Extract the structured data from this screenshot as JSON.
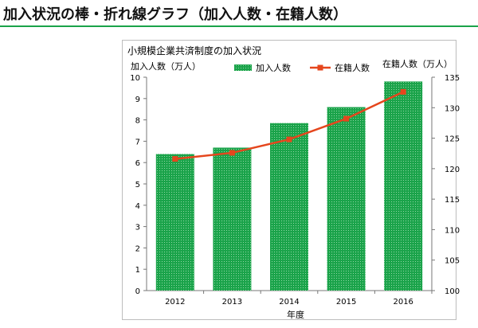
{
  "page_title": "加入状況の棒・折れ線グラフ（加入人数・在籍人数）",
  "colors": {
    "accent_line": "#1aa34a",
    "bar": "#1aa34a",
    "line": "#e5461d"
  },
  "chart_data": {
    "type": "bar",
    "title": "小規模企業共済制度の加入状況",
    "categories": [
      "2012",
      "2013",
      "2014",
      "2015",
      "2016"
    ],
    "xlabel": "年度",
    "ylabel": "加入人数（万人）",
    "y2label": "在籍人数（万人）",
    "ylim": [
      0,
      10
    ],
    "y2lim": [
      100,
      135
    ],
    "yticks": [
      "0",
      "1",
      "2",
      "3",
      "4",
      "5",
      "6",
      "7",
      "8",
      "9",
      "10"
    ],
    "y2ticks": [
      "100",
      "105",
      "110",
      "115",
      "120",
      "125",
      "130",
      "135"
    ],
    "series": [
      {
        "name": "加入人数",
        "type": "bar",
        "axis": "left",
        "values": [
          6.4,
          6.7,
          7.85,
          8.6,
          9.8
        ]
      },
      {
        "name": "在籍人数",
        "type": "line",
        "axis": "right",
        "values": [
          121.6,
          122.6,
          124.8,
          128.2,
          132.6
        ]
      }
    ],
    "grid": false,
    "legend": "top"
  }
}
